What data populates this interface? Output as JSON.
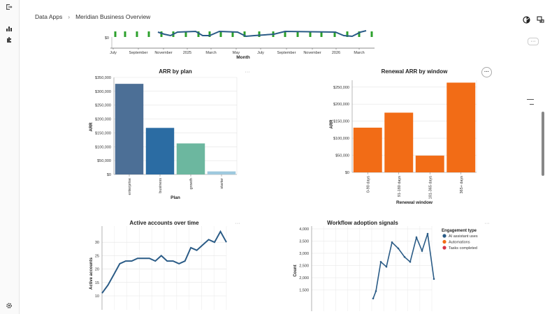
{
  "breadcrumb": {
    "root": "Data Apps",
    "separator": "›",
    "current": "Meridian Business Overview"
  },
  "icons": {
    "rail_top": "exit-icon",
    "rail_chart": "bar-chart-icon",
    "rail_puzzle": "puzzle-icon",
    "rail_settings": "gear-icon",
    "top_theme": "theme-icon",
    "top_share": "share-icon",
    "more": "more-icon"
  },
  "more_label": "···",
  "timeline": {
    "zero_label": "$0",
    "ticks": [
      "July",
      "September",
      "November",
      "2025",
      "March",
      "May",
      "July",
      "September",
      "November",
      "2026",
      "March"
    ],
    "xlabel": "Month",
    "bar_color": "#2ca02c",
    "line_color": "#2a5b86"
  },
  "chart_data": [
    {
      "type": "bar",
      "title": "ARR by plan",
      "xlabel": "Plan",
      "ylabel": "ARR",
      "categories": [
        "enterprise",
        "business",
        "growth",
        "starter"
      ],
      "values": [
        327000,
        168000,
        112000,
        11000
      ],
      "colors": [
        "#4c6f96",
        "#2b6ca3",
        "#6cb79f",
        "#9ec9de"
      ],
      "ylim": [
        0,
        350000
      ],
      "yticks": [
        "$0",
        "$50,000",
        "$100,000",
        "$150,000",
        "$200,000",
        "$250,000",
        "$300,000",
        "$350,000"
      ]
    },
    {
      "type": "bar",
      "title": "Renewal ARR by window",
      "xlabel": "Renewal window",
      "ylabel": "ARR",
      "categories": [
        "0-90 days",
        "91-180 days",
        "181-365 days",
        "365+ days"
      ],
      "values": [
        131000,
        175000,
        49000,
        263000
      ],
      "colors": [
        "#f26c16",
        "#f26c16",
        "#f26c16",
        "#f26c16"
      ],
      "ylim": [
        0,
        270000
      ],
      "yticks": [
        "$0",
        "$50,000",
        "$100,000",
        "$150,000",
        "$200,000",
        "$250,000"
      ]
    },
    {
      "type": "line",
      "title": "Active accounts over time",
      "ylabel": "Active accounts",
      "yticks": [
        "10",
        "15",
        "20",
        "25",
        "30"
      ],
      "ylim": [
        10,
        35
      ],
      "values": [
        11,
        14,
        18,
        22,
        23,
        23,
        24,
        24,
        24,
        23,
        25,
        23,
        23,
        22,
        23,
        28,
        27,
        29,
        31,
        30,
        34,
        30
      ],
      "color": "#2a5b86"
    },
    {
      "type": "line",
      "title": "Workflow adoption signals",
      "ylabel": "Count",
      "yticks": [
        "1,500",
        "2,000",
        "2,500",
        "3,000",
        "3,500",
        "4,000"
      ],
      "ylim": [
        1200,
        4000
      ],
      "legend_title": "Engagement type",
      "legend": [
        {
          "name": "AI assistant uses",
          "color": "#2a5b86"
        },
        {
          "name": "Automations",
          "color": "#f26c16"
        },
        {
          "name": "Tasks completed",
          "color": "#d6334a"
        }
      ],
      "values": [
        1150,
        1450,
        2650,
        2450,
        3450,
        3200,
        2850,
        2650,
        3650,
        3100,
        3800,
        1950
      ],
      "color": "#2a5b86"
    }
  ]
}
